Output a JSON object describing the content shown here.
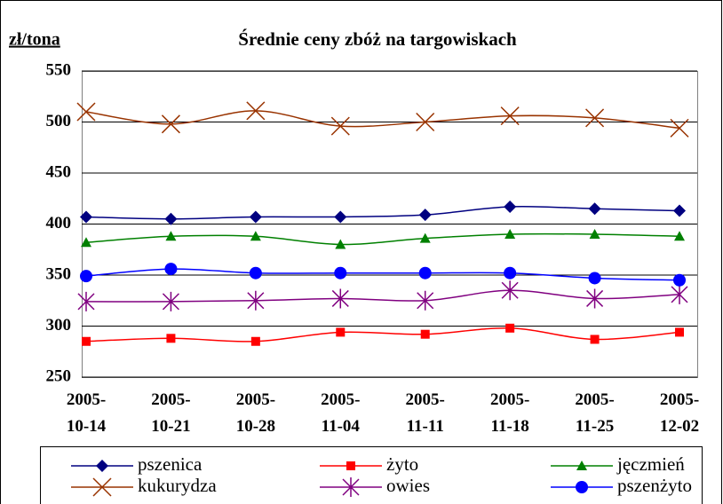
{
  "chart_data": {
    "type": "line",
    "title": "Średnie ceny zbóż na targowiskach",
    "y_label": "zł/tona",
    "categories": [
      "2005-10-14",
      "2005-10-21",
      "2005-10-28",
      "2005-11-04",
      "2005-11-11",
      "2005-11-18",
      "2005-11-25",
      "2005-12-02"
    ],
    "series": [
      {
        "name": "pszenica",
        "color": "#000080",
        "marker": "diamond",
        "values": [
          407,
          405,
          407,
          407,
          409,
          417,
          415,
          413
        ]
      },
      {
        "name": "żyto",
        "color": "#ff0000",
        "marker": "square",
        "values": [
          285,
          288,
          285,
          294,
          292,
          298,
          287,
          294
        ]
      },
      {
        "name": "jęczmień",
        "color": "#008000",
        "marker": "triangle",
        "values": [
          382,
          388,
          388,
          380,
          386,
          390,
          390,
          388
        ]
      },
      {
        "name": "kukurydza",
        "color": "#993300",
        "marker": "x",
        "values": [
          510,
          498,
          511,
          496,
          500,
          506,
          504,
          494
        ]
      },
      {
        "name": "owies",
        "color": "#800080",
        "marker": "star",
        "values": [
          324,
          324,
          325,
          327,
          325,
          335,
          327,
          331
        ]
      },
      {
        "name": "pszenżyto",
        "color": "#0000ff",
        "marker": "circle",
        "values": [
          349,
          356,
          352,
          352,
          352,
          352,
          347,
          345
        ]
      }
    ],
    "ylim": [
      250,
      550
    ],
    "yticks": [
      250,
      300,
      350,
      400,
      450,
      500,
      550
    ],
    "grid": true,
    "legend": "bottom"
  }
}
